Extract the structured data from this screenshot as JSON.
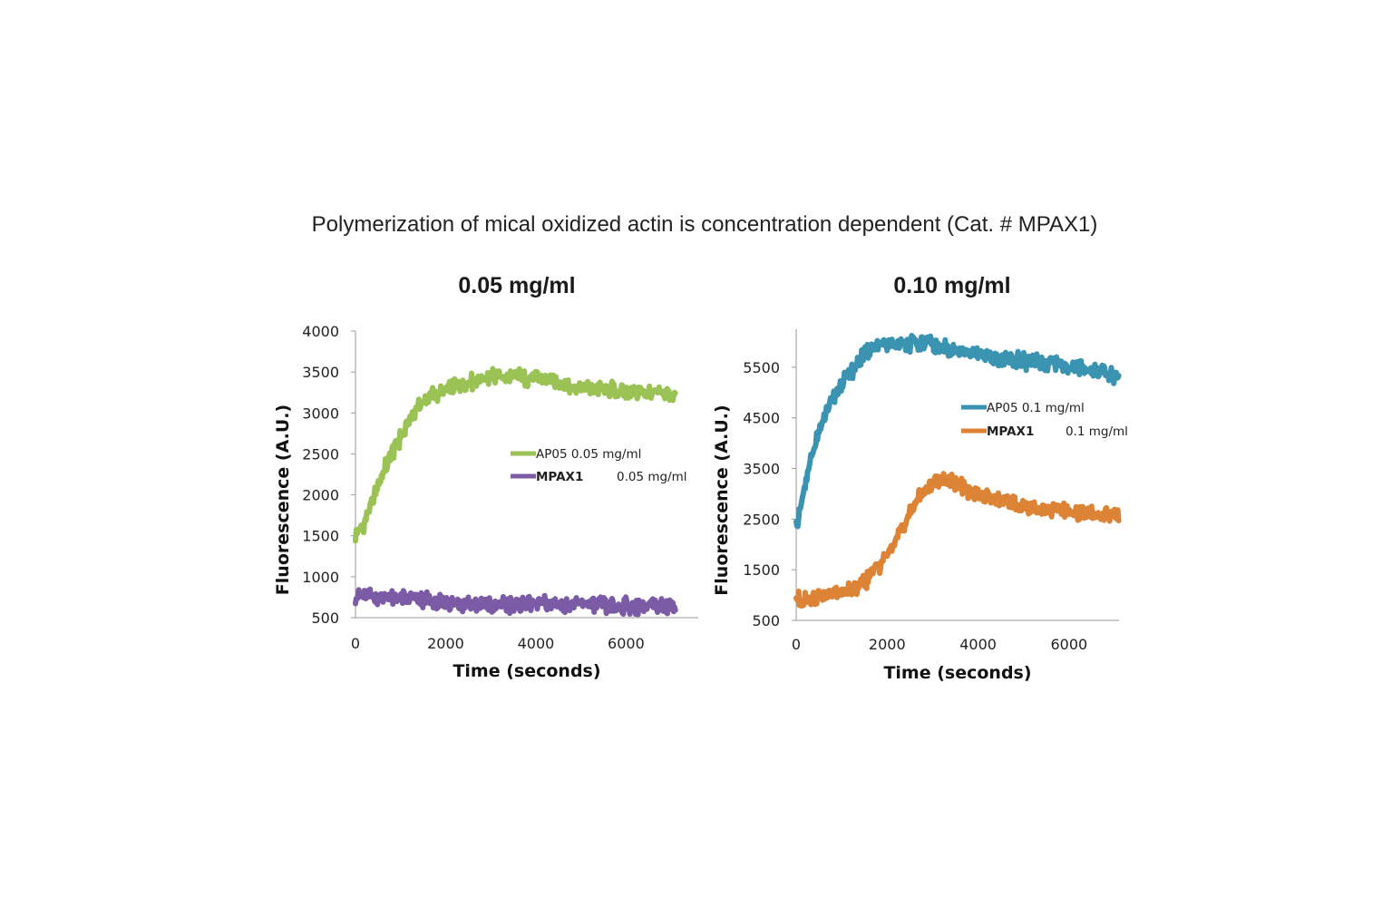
{
  "figure_title": "Polymerization of mical oxidized actin is concentration dependent (Cat. # MPAX1)",
  "colors": {
    "green": "#9bc255",
    "purple": "#7b5aa6",
    "blue": "#3a93b0",
    "orange": "#dc8336"
  },
  "chart_data": [
    {
      "type": "line",
      "title": "0.05 mg/ml",
      "xlabel": "Time (seconds)",
      "ylabel": "Fluorescence (A.U.)",
      "xlim": [
        0,
        7600
      ],
      "ylim": [
        500,
        4000
      ],
      "xticks": [
        0,
        2000,
        4000,
        6000
      ],
      "yticks": [
        500,
        1000,
        1500,
        2000,
        2500,
        3000,
        3500,
        4000
      ],
      "legend_position": "center-right",
      "series": [
        {
          "name": "AP05 0.05 mg/ml",
          "legend_parts": [
            "AP05 0.05 mg/ml"
          ],
          "color": "#9bc255",
          "x": [
            0,
            200,
            400,
            600,
            800,
            1000,
            1200,
            1400,
            1600,
            2000,
            2400,
            2800,
            3200,
            3600,
            4000,
            4400,
            4800,
            5200,
            5600,
            6000,
            6400,
            6800,
            7100
          ],
          "y": [
            1500,
            1650,
            1950,
            2250,
            2500,
            2700,
            2900,
            3100,
            3200,
            3280,
            3350,
            3420,
            3450,
            3440,
            3420,
            3380,
            3320,
            3300,
            3300,
            3260,
            3250,
            3240,
            3230
          ]
        },
        {
          "name": "MPAX1 0.05 mg/ml",
          "legend_parts": [
            "MPAX1",
            "0.05 mg/ml"
          ],
          "color": "#7b5aa6",
          "x": [
            0,
            1000,
            2000,
            3000,
            4000,
            5000,
            6000,
            7100
          ],
          "y": [
            760,
            740,
            680,
            650,
            670,
            660,
            640,
            650
          ]
        }
      ]
    },
    {
      "type": "line",
      "title": "0.10 mg/ml",
      "xlabel": "Time (seconds)",
      "ylabel": "Fluorescence (A.U.)",
      "xlim": [
        0,
        7100
      ],
      "ylim": [
        500,
        6250
      ],
      "xticks": [
        0,
        2000,
        4000,
        6000
      ],
      "yticks": [
        500,
        1500,
        2500,
        3500,
        4500,
        5500
      ],
      "legend_position": "top-right",
      "series": [
        {
          "name": "AP05 0.1 mg/ml",
          "legend_parts": [
            "AP05 0.1 mg/ml"
          ],
          "color": "#3a93b0",
          "x": [
            0,
            100,
            200,
            300,
            400,
            600,
            800,
            1000,
            1200,
            1400,
            1600,
            1800,
            2000,
            2400,
            2800,
            3200,
            3600,
            4000,
            4400,
            4800,
            5200,
            5600,
            6000,
            6400,
            6800,
            7100
          ],
          "y": [
            2350,
            2700,
            3150,
            3550,
            3950,
            4450,
            4850,
            5150,
            5400,
            5650,
            5850,
            5920,
            5950,
            5980,
            5970,
            5900,
            5820,
            5760,
            5700,
            5640,
            5600,
            5550,
            5500,
            5450,
            5400,
            5300
          ]
        },
        {
          "name": "MPAX1 0.1 mg/ml",
          "legend_parts": [
            "MPAX1",
            "0.1 mg/ml"
          ],
          "color": "#dc8336",
          "x": [
            0,
            400,
            800,
            1200,
            1500,
            1800,
            2100,
            2400,
            2700,
            3000,
            3300,
            3600,
            4000,
            4400,
            4800,
            5200,
            5600,
            6000,
            6400,
            6800,
            7100
          ],
          "y": [
            900,
            960,
            1030,
            1100,
            1250,
            1550,
            1950,
            2450,
            2950,
            3250,
            3300,
            3150,
            3000,
            2900,
            2800,
            2750,
            2700,
            2650,
            2620,
            2600,
            2550
          ]
        }
      ]
    }
  ]
}
